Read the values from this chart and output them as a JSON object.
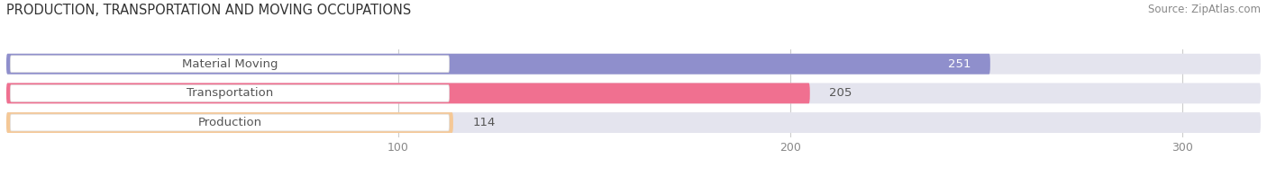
{
  "title": "PRODUCTION, TRANSPORTATION AND MOVING OCCUPATIONS",
  "source": "Source: ZipAtlas.com",
  "categories": [
    "Material Moving",
    "Transportation",
    "Production"
  ],
  "values": [
    251,
    205,
    114
  ],
  "bar_colors": [
    "#8f8fcc",
    "#f07090",
    "#f5c896"
  ],
  "bar_bg_color": "#e4e4ee",
  "xlim": [
    0,
    320
  ],
  "xticks": [
    100,
    200,
    300
  ],
  "title_fontsize": 10.5,
  "source_fontsize": 8.5,
  "label_fontsize": 9.5,
  "value_fontsize": 9.5,
  "background_color": "#ffffff"
}
